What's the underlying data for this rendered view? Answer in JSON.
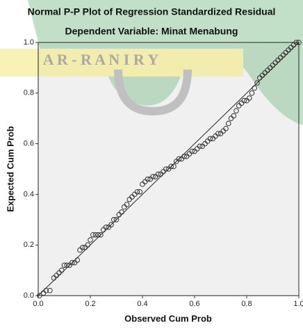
{
  "chart_data": {
    "type": "scatter",
    "title": "Normal P-P Plot of Regression Standardized Residual",
    "subtitle": "Dependent Variable: Minat Menabung",
    "x_label": "Observed Cum Prob",
    "y_label": "Expected Cum Prob",
    "watermark": "A R - R A N I R Y",
    "xlim": [
      0,
      1
    ],
    "ylim": [
      0,
      1
    ],
    "xticks": [
      {
        "value": 0,
        "label": "0.0"
      },
      0.2,
      0.4,
      0.6,
      0.8,
      {
        "value": 1,
        "label": "1.0"
      }
    ],
    "yticks": [
      {
        "value": 0,
        "label": "0.0"
      },
      0.2,
      0.4,
      0.6,
      0.8,
      {
        "value": 1,
        "label": "1.0"
      }
    ],
    "reference_line": true,
    "color": "#333333",
    "x": [
      0.005,
      0.02,
      0.03,
      0.045,
      0.06,
      0.07,
      0.08,
      0.09,
      0.1,
      0.11,
      0.12,
      0.13,
      0.14,
      0.15,
      0.16,
      0.17,
      0.18,
      0.19,
      0.2,
      0.21,
      0.22,
      0.23,
      0.24,
      0.25,
      0.26,
      0.27,
      0.28,
      0.29,
      0.3,
      0.31,
      0.32,
      0.33,
      0.34,
      0.35,
      0.36,
      0.37,
      0.38,
      0.39,
      0.4,
      0.41,
      0.42,
      0.43,
      0.44,
      0.45,
      0.46,
      0.47,
      0.48,
      0.49,
      0.5,
      0.51,
      0.52,
      0.53,
      0.54,
      0.55,
      0.56,
      0.57,
      0.58,
      0.59,
      0.6,
      0.61,
      0.62,
      0.63,
      0.64,
      0.65,
      0.66,
      0.67,
      0.68,
      0.69,
      0.7,
      0.71,
      0.72,
      0.73,
      0.74,
      0.75,
      0.76,
      0.77,
      0.78,
      0.79,
      0.8,
      0.81,
      0.82,
      0.83,
      0.84,
      0.85,
      0.86,
      0.87,
      0.88,
      0.89,
      0.9,
      0.91,
      0.92,
      0.93,
      0.94,
      0.95,
      0.96,
      0.97,
      0.98,
      0.99,
      1.0
    ],
    "values": [
      0.0,
      0.01,
      0.02,
      0.02,
      0.07,
      0.08,
      0.09,
      0.1,
      0.12,
      0.12,
      0.12,
      0.13,
      0.13,
      0.14,
      0.18,
      0.19,
      0.19,
      0.2,
      0.22,
      0.24,
      0.24,
      0.24,
      0.24,
      0.26,
      0.27,
      0.27,
      0.28,
      0.3,
      0.3,
      0.32,
      0.33,
      0.35,
      0.36,
      0.38,
      0.39,
      0.4,
      0.41,
      0.41,
      0.44,
      0.45,
      0.46,
      0.46,
      0.47,
      0.47,
      0.48,
      0.48,
      0.49,
      0.5,
      0.5,
      0.51,
      0.51,
      0.53,
      0.54,
      0.54,
      0.55,
      0.55,
      0.56,
      0.57,
      0.57,
      0.58,
      0.59,
      0.59,
      0.6,
      0.61,
      0.62,
      0.62,
      0.63,
      0.64,
      0.64,
      0.65,
      0.66,
      0.68,
      0.7,
      0.71,
      0.73,
      0.75,
      0.76,
      0.77,
      0.77,
      0.78,
      0.8,
      0.82,
      0.84,
      0.86,
      0.87,
      0.88,
      0.89,
      0.9,
      0.91,
      0.92,
      0.93,
      0.94,
      0.95,
      0.96,
      0.97,
      0.98,
      0.99,
      1.0,
      1.0
    ]
  }
}
